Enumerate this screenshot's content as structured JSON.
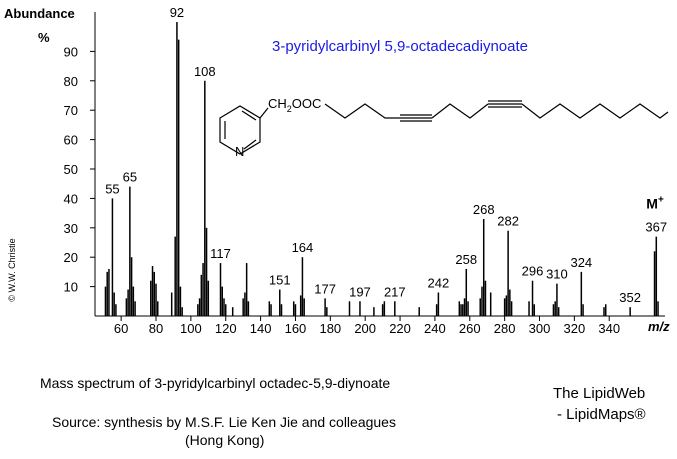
{
  "chart_data": {
    "type": "stem",
    "title": "3-pyridylcarbinyl 5,9-octadecadiynoate",
    "y_label": "Abundance",
    "y_unit": "%",
    "x_label": "m/z",
    "color": "#000000",
    "title_color": "#1a1ae6",
    "x": [
      51,
      52,
      53,
      55,
      56,
      57,
      63,
      64,
      65,
      66,
      67,
      68,
      77,
      78,
      79,
      80,
      81,
      89,
      91,
      92,
      93,
      94,
      95,
      104,
      105,
      106,
      107,
      108,
      109,
      110,
      117,
      118,
      119,
      120,
      124,
      130,
      131,
      132,
      133,
      145,
      146,
      151,
      152,
      159,
      160,
      163,
      164,
      165,
      177,
      178,
      191,
      197,
      205,
      210,
      211,
      217,
      231,
      241,
      242,
      254,
      255,
      256,
      257,
      258,
      259,
      266,
      267,
      268,
      269,
      272,
      280,
      281,
      282,
      283,
      284,
      294,
      296,
      297,
      308,
      309,
      310,
      311,
      324,
      325,
      337,
      338,
      352,
      366,
      367,
      368
    ],
    "values": [
      10,
      15,
      16,
      40,
      8,
      4,
      6,
      9,
      44,
      20,
      10,
      5,
      12,
      17,
      15,
      11,
      5,
      8,
      27,
      100,
      94,
      10,
      3,
      4,
      6,
      14,
      18,
      80,
      30,
      12,
      18,
      10,
      6,
      4,
      3,
      6,
      8,
      18,
      5,
      5,
      4,
      9,
      4,
      5,
      4,
      7,
      20,
      6,
      6,
      3,
      5,
      5,
      3,
      4,
      5,
      5,
      3,
      4,
      8,
      5,
      4,
      4,
      6,
      16,
      5,
      6,
      10,
      33,
      12,
      8,
      6,
      7,
      29,
      9,
      5,
      5,
      12,
      4,
      4,
      5,
      11,
      3,
      15,
      4,
      3,
      4,
      3,
      22,
      27,
      5
    ],
    "peak_labels": [
      null,
      null,
      null,
      "55",
      null,
      null,
      null,
      null,
      "65",
      null,
      null,
      null,
      null,
      null,
      null,
      null,
      null,
      null,
      null,
      "92",
      null,
      null,
      null,
      null,
      null,
      null,
      null,
      "108",
      null,
      null,
      "117",
      null,
      null,
      null,
      null,
      null,
      null,
      null,
      null,
      null,
      null,
      "151",
      null,
      null,
      null,
      null,
      "164",
      null,
      "177",
      null,
      null,
      "197",
      null,
      null,
      null,
      "217",
      null,
      null,
      "242",
      null,
      null,
      null,
      null,
      "258",
      null,
      null,
      null,
      "268",
      null,
      null,
      null,
      null,
      "282",
      null,
      null,
      null,
      "296",
      null,
      null,
      null,
      "310",
      null,
      "324",
      null,
      null,
      null,
      "352",
      null,
      "367",
      null
    ],
    "molecular_ion": {
      "text": "M",
      "sup": "+"
    },
    "xlim": [
      45,
      372
    ],
    "xticks": [
      60,
      80,
      100,
      120,
      140,
      160,
      180,
      200,
      220,
      240,
      260,
      280,
      300,
      320,
      340
    ],
    "ylim": [
      0,
      100
    ],
    "yticks": [
      10,
      20,
      30,
      40,
      50,
      60,
      70,
      80,
      90
    ],
    "structure": {
      "group": "CH",
      "sub": "2",
      "rest": "OOC",
      "atom": "N"
    },
    "copyright": "© W.W. Christie",
    "caption": "Mass spectrum of 3-pyridylcarbinyl octadec-5,9-diynoate",
    "source": "Source: synthesis by M.S.F. Lie Ken Jie and colleagues",
    "source_place": "(Hong Kong)",
    "brand": "The LipidWeb",
    "brand2": "- LipidMaps®"
  }
}
